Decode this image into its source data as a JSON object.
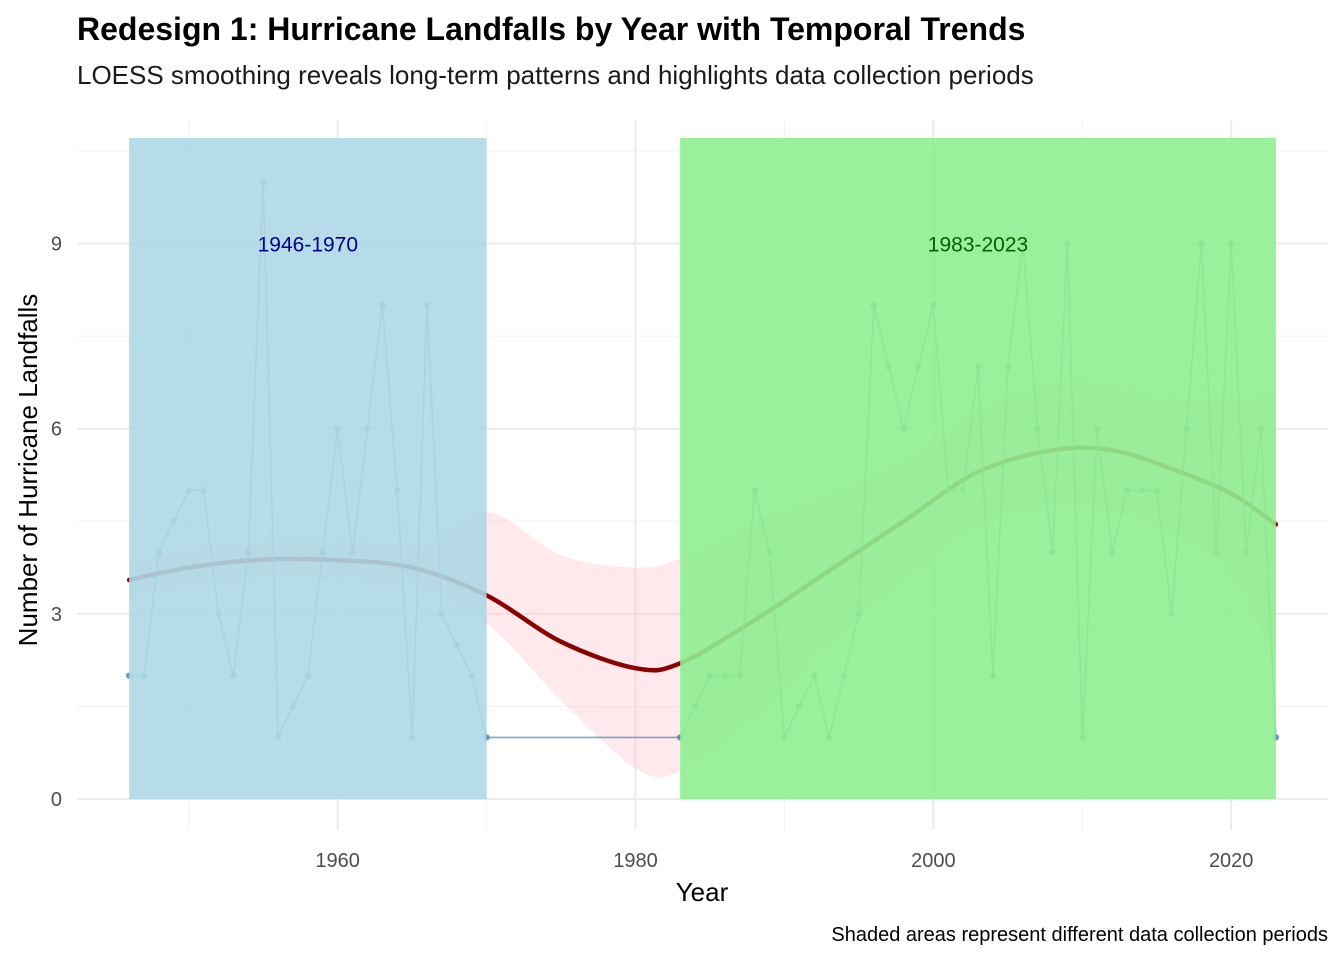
{
  "chart_data": {
    "type": "line",
    "title": "Redesign 1: Hurricane Landfalls by Year with Temporal Trends",
    "subtitle": "LOESS smoothing reveals long-term patterns and highlights data collection periods",
    "caption": "Shaded areas represent different data collection periods",
    "xlabel": "Year",
    "ylabel": "Number of Hurricane Landfalls",
    "xlim": [
      1942.5,
      2026.5
    ],
    "ylim": [
      -0.5,
      11
    ],
    "x_ticks": [
      1960,
      1980,
      2000,
      2020
    ],
    "y_ticks": [
      0,
      3,
      6,
      9
    ],
    "grid": true,
    "legend": "none",
    "periods": [
      {
        "label": "1946-1970",
        "start": 1946,
        "end": 1970,
        "color": "#ADD8E6",
        "label_color": "#00008B",
        "label_x": 1958,
        "label_y": 9
      },
      {
        "label": "1983-2023",
        "start": 1983,
        "end": 2023,
        "color": "#90EE90",
        "label_color": "#006400",
        "label_x": 2003,
        "label_y": 9
      }
    ],
    "series": {
      "line_color": "#4682B4",
      "x": [
        1946,
        1947,
        1948,
        1949,
        1950,
        1951,
        1952,
        1953,
        1954,
        1955,
        1956,
        1957,
        1958,
        1959,
        1960,
        1961,
        1962,
        1963,
        1964,
        1965,
        1966,
        1967,
        1968,
        1969,
        1970,
        1983,
        1984,
        1985,
        1986,
        1987,
        1988,
        1989,
        1990,
        1991,
        1992,
        1993,
        1994,
        1995,
        1996,
        1997,
        1998,
        1999,
        2000,
        2001,
        2002,
        2003,
        2004,
        2005,
        2006,
        2007,
        2008,
        2009,
        2010,
        2011,
        2012,
        2013,
        2014,
        2015,
        2016,
        2017,
        2018,
        2019,
        2020,
        2021,
        2022,
        2023
      ],
      "y": [
        2,
        2,
        4,
        4.5,
        5,
        5,
        3,
        2,
        4,
        10,
        1,
        1.5,
        2,
        4,
        6,
        4,
        6,
        8,
        5,
        1,
        8,
        3,
        2.5,
        2,
        1,
        1,
        1.5,
        2,
        2,
        2,
        5,
        4,
        1,
        1.5,
        2,
        1,
        2,
        3,
        8,
        7,
        6,
        7,
        8,
        5,
        5,
        7,
        2,
        7,
        9,
        6,
        4,
        9,
        1,
        6,
        4,
        5,
        5,
        5,
        3,
        6,
        9,
        4,
        9,
        4,
        6,
        1
      ]
    },
    "loess": {
      "line_color": "#8B0000",
      "band_color": "#FFB6C1",
      "x": [
        1946,
        1950,
        1955,
        1960,
        1965,
        1970,
        1975,
        1980,
        1983,
        1988,
        1993,
        1998,
        2003,
        2008,
        2012,
        2016,
        2020,
        2023
      ],
      "y": [
        3.55,
        3.75,
        3.88,
        3.87,
        3.75,
        3.3,
        2.55,
        2.12,
        2.2,
        2.9,
        3.7,
        4.5,
        5.3,
        5.65,
        5.65,
        5.35,
        4.95,
        4.45
      ],
      "ymin": [
        3.25,
        3.45,
        3.55,
        3.55,
        3.45,
        2.85,
        1.6,
        0.5,
        0.45,
        1.3,
        2.5,
        3.5,
        4.4,
        4.7,
        4.65,
        4.3,
        3.6,
        2.2
      ],
      "ymax": [
        3.85,
        4.05,
        4.2,
        4.2,
        4.1,
        4.65,
        3.95,
        3.75,
        3.9,
        4.5,
        4.95,
        5.5,
        6.3,
        6.75,
        6.7,
        6.5,
        6.5,
        6.6
      ]
    }
  }
}
